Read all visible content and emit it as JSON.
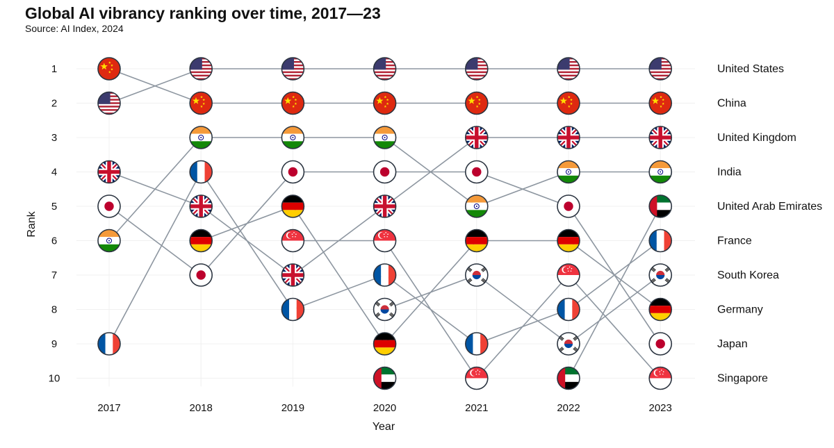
{
  "header": {
    "title": "Global AI vibrancy ranking over time, 2017—23",
    "subtitle": "Source: AI Index, 2024"
  },
  "chart_data": {
    "type": "bump",
    "title": "Global AI vibrancy ranking over time, 2017—23",
    "source": "Source: AI Index, 2024",
    "xlabel": "Year",
    "ylabel": "Rank",
    "years": [
      "2017",
      "2018",
      "2019",
      "2020",
      "2021",
      "2022",
      "2023"
    ],
    "ranks": [
      "1",
      "2",
      "3",
      "4",
      "5",
      "6",
      "7",
      "8",
      "9",
      "10"
    ],
    "ylim": [
      1,
      10
    ],
    "series": [
      {
        "name": "United States",
        "flag": "us",
        "ranks": [
          2,
          1,
          1,
          1,
          1,
          1,
          1
        ]
      },
      {
        "name": "China",
        "flag": "cn",
        "ranks": [
          1,
          2,
          2,
          2,
          2,
          2,
          2
        ]
      },
      {
        "name": "United Kingdom",
        "flag": "gb",
        "ranks": [
          4,
          5,
          7,
          5,
          3,
          3,
          3
        ]
      },
      {
        "name": "India",
        "flag": "in",
        "ranks": [
          6,
          3,
          3,
          3,
          5,
          4,
          4
        ]
      },
      {
        "name": "United Arab Emirates",
        "flag": "ae",
        "ranks": [
          null,
          null,
          null,
          10,
          null,
          10,
          5
        ]
      },
      {
        "name": "France",
        "flag": "fr",
        "ranks": [
          9,
          4,
          8,
          7,
          9,
          8,
          6
        ]
      },
      {
        "name": "South Korea",
        "flag": "kr",
        "ranks": [
          null,
          null,
          null,
          8,
          7,
          9,
          7
        ]
      },
      {
        "name": "Germany",
        "flag": "de",
        "ranks": [
          null,
          6,
          5,
          9,
          6,
          6,
          8
        ]
      },
      {
        "name": "Japan",
        "flag": "jp",
        "ranks": [
          5,
          7,
          4,
          4,
          4,
          5,
          9
        ]
      },
      {
        "name": "Singapore",
        "flag": "sg",
        "ranks": [
          null,
          null,
          6,
          6,
          10,
          7,
          10
        ]
      }
    ],
    "colors": {
      "line": "#8d96a0",
      "marker_outline": "#2b3440",
      "grid": "#f0f0f0",
      "red": "#de2910",
      "yellow": "#ffde00",
      "navy": "#1f3a93",
      "us_red": "#b22234",
      "us_blue": "#3c3b6e",
      "uk_blue": "#012169",
      "uk_red": "#c8102e",
      "saffron": "#f59a3a",
      "green": "#138808",
      "chakra": "#000080",
      "ae_red": "#ce1126",
      "ae_green": "#00732f",
      "fr_blue": "#0055a4",
      "fr_red": "#ef4135",
      "de_black": "#000000",
      "de_red": "#dd0000",
      "de_gold": "#ffce00",
      "jp_red": "#bc002d",
      "kr_red": "#cd2e3a",
      "kr_blue": "#0047a0",
      "sg_red": "#ef3340",
      "white": "#ffffff"
    }
  }
}
